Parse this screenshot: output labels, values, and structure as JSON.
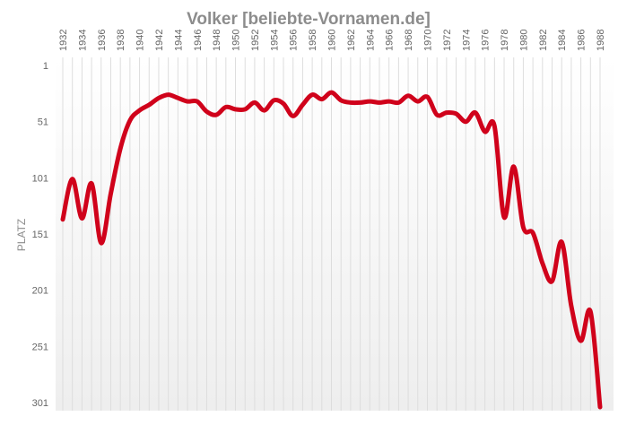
{
  "chart_data": {
    "type": "line",
    "title": "Volker [beliebte-Vornamen.de]",
    "ylabel": "PLATZ",
    "xlabel": "",
    "y_inverted": true,
    "ylim": [
      1,
      310
    ],
    "xlim": [
      1932,
      1989
    ],
    "y_ticks": [
      "1",
      "51",
      "101",
      "151",
      "201",
      "251",
      "301"
    ],
    "x_ticks": [
      "1932",
      "1934",
      "1936",
      "1938",
      "1940",
      "1942",
      "1944",
      "1946",
      "1948",
      "1950",
      "1952",
      "1954",
      "1956",
      "1958",
      "1960",
      "1962",
      "1964",
      "1966",
      "1968",
      "1970",
      "1972",
      "1974",
      "1976",
      "1978",
      "1980",
      "1982",
      "1984",
      "1986",
      "1988"
    ],
    "grid": "vertical",
    "line_color": "#d0021b",
    "background": "gradient white to light gray",
    "series": [
      {
        "x": [
          1932,
          1933,
          1934,
          1935,
          1936,
          1937,
          1938,
          1939,
          1940,
          1941,
          1942,
          1943,
          1944,
          1945,
          1946,
          1947,
          1948,
          1949,
          1950,
          1951,
          1952,
          1953,
          1954,
          1955,
          1956,
          1957,
          1958,
          1959,
          1960,
          1961,
          1962,
          1963,
          1964,
          1965,
          1966,
          1967,
          1968,
          1969,
          1970,
          1971,
          1972,
          1973,
          1974,
          1975,
          1976,
          1977,
          1978,
          1979,
          1980,
          1981,
          1982,
          1983,
          1984,
          1985,
          1986,
          1987,
          1988
        ],
        "values": [
          138,
          102,
          137,
          106,
          159,
          115,
          75,
          50,
          41,
          36,
          30,
          27,
          30,
          33,
          33,
          42,
          45,
          38,
          40,
          40,
          34,
          41,
          32,
          35,
          46,
          36,
          27,
          31,
          25,
          32,
          34,
          34,
          33,
          34,
          33,
          34,
          28,
          33,
          29,
          45,
          43,
          44,
          51,
          43,
          60,
          55,
          136,
          91,
          145,
          150,
          177,
          193,
          158,
          215,
          246,
          220,
          305
        ]
      }
    ]
  }
}
